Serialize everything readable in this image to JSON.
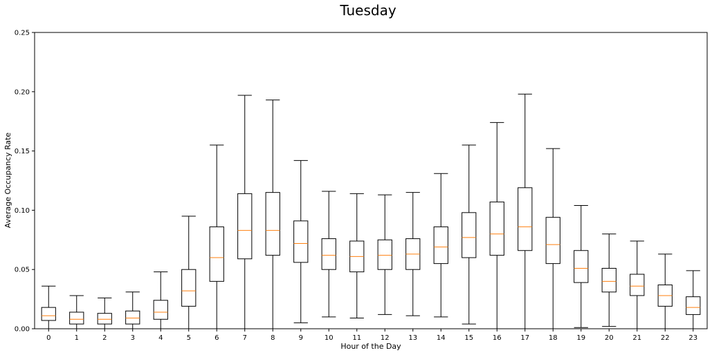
{
  "chart_data": {
    "type": "box",
    "title": "Tuesday",
    "xlabel": "Hour of the Day",
    "ylabel": "Average Occupancy Rate",
    "ylim": [
      0,
      0.25
    ],
    "yticks": [
      "0.00",
      "0.05",
      "0.10",
      "0.15",
      "0.20",
      "0.25"
    ],
    "categories": [
      "0",
      "1",
      "2",
      "3",
      "4",
      "5",
      "6",
      "7",
      "8",
      "9",
      "10",
      "11",
      "12",
      "13",
      "14",
      "15",
      "16",
      "17",
      "18",
      "19",
      "20",
      "21",
      "22",
      "23"
    ],
    "boxes": [
      {
        "whislo": 0.0,
        "q1": 0.007,
        "med": 0.011,
        "q3": 0.018,
        "whishi": 0.036
      },
      {
        "whislo": 0.0,
        "q1": 0.004,
        "med": 0.008,
        "q3": 0.014,
        "whishi": 0.028
      },
      {
        "whislo": 0.0,
        "q1": 0.004,
        "med": 0.008,
        "q3": 0.013,
        "whishi": 0.026
      },
      {
        "whislo": 0.0,
        "q1": 0.004,
        "med": 0.009,
        "q3": 0.015,
        "whishi": 0.031
      },
      {
        "whislo": 0.0,
        "q1": 0.008,
        "med": 0.014,
        "q3": 0.024,
        "whishi": 0.048
      },
      {
        "whislo": 0.0,
        "q1": 0.019,
        "med": 0.032,
        "q3": 0.05,
        "whishi": 0.095
      },
      {
        "whislo": 0.0,
        "q1": 0.04,
        "med": 0.06,
        "q3": 0.086,
        "whishi": 0.155
      },
      {
        "whislo": 0.0,
        "q1": 0.059,
        "med": 0.083,
        "q3": 0.114,
        "whishi": 0.197
      },
      {
        "whislo": 0.0,
        "q1": 0.062,
        "med": 0.083,
        "q3": 0.115,
        "whishi": 0.193
      },
      {
        "whislo": 0.005,
        "q1": 0.056,
        "med": 0.072,
        "q3": 0.091,
        "whishi": 0.142
      },
      {
        "whislo": 0.01,
        "q1": 0.05,
        "med": 0.062,
        "q3": 0.076,
        "whishi": 0.116
      },
      {
        "whislo": 0.009,
        "q1": 0.048,
        "med": 0.061,
        "q3": 0.074,
        "whishi": 0.114
      },
      {
        "whislo": 0.012,
        "q1": 0.05,
        "med": 0.062,
        "q3": 0.075,
        "whishi": 0.113
      },
      {
        "whislo": 0.011,
        "q1": 0.05,
        "med": 0.063,
        "q3": 0.076,
        "whishi": 0.115
      },
      {
        "whislo": 0.01,
        "q1": 0.055,
        "med": 0.069,
        "q3": 0.086,
        "whishi": 0.131
      },
      {
        "whislo": 0.004,
        "q1": 0.06,
        "med": 0.077,
        "q3": 0.098,
        "whishi": 0.155
      },
      {
        "whislo": 0.0,
        "q1": 0.062,
        "med": 0.08,
        "q3": 0.107,
        "whishi": 0.174
      },
      {
        "whislo": 0.0,
        "q1": 0.066,
        "med": 0.086,
        "q3": 0.119,
        "whishi": 0.198
      },
      {
        "whislo": 0.0,
        "q1": 0.055,
        "med": 0.071,
        "q3": 0.094,
        "whishi": 0.152
      },
      {
        "whislo": 0.001,
        "q1": 0.039,
        "med": 0.051,
        "q3": 0.066,
        "whishi": 0.104
      },
      {
        "whislo": 0.002,
        "q1": 0.031,
        "med": 0.04,
        "q3": 0.051,
        "whishi": 0.08
      },
      {
        "whislo": 0.0,
        "q1": 0.028,
        "med": 0.036,
        "q3": 0.046,
        "whishi": 0.074
      },
      {
        "whislo": 0.0,
        "q1": 0.019,
        "med": 0.028,
        "q3": 0.037,
        "whishi": 0.063
      },
      {
        "whislo": 0.0,
        "q1": 0.012,
        "med": 0.018,
        "q3": 0.027,
        "whishi": 0.049
      }
    ],
    "grid": false,
    "colors": {
      "box": "#000000",
      "median": "#ff7f0e",
      "background": "#ffffff"
    }
  }
}
